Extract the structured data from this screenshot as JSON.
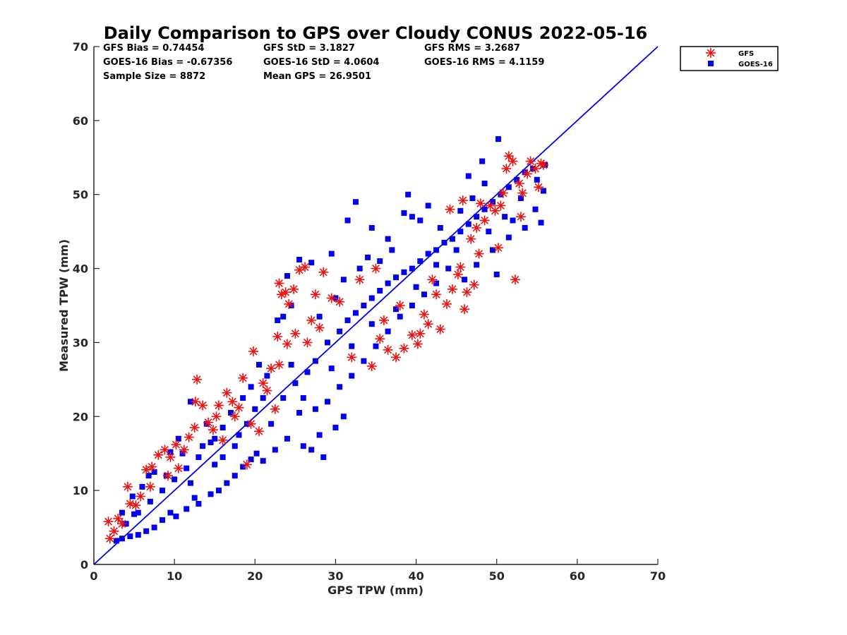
{
  "chart_data": {
    "type": "scatter",
    "title": "Daily Comparison to GPS over Cloudy CONUS 2022-05-16",
    "xlabel": "GPS TPW (mm)",
    "ylabel": "Measured TPW (mm)",
    "xlim": [
      0,
      70
    ],
    "ylim": [
      0,
      70
    ],
    "xticks": [
      "0",
      "10",
      "20",
      "30",
      "40",
      "50",
      "60",
      "70"
    ],
    "yticks": [
      "0",
      "10",
      "20",
      "30",
      "40",
      "50",
      "60",
      "70"
    ],
    "grid": false,
    "legend_position": "outside-top-right",
    "stats": {
      "gfs_bias": "GFS Bias = 0.74454",
      "gfs_std": "GFS StD = 3.1827",
      "gfs_rms": "GFS RMS = 3.2687",
      "goes_bias": "GOES-16 Bias = -0.67356",
      "goes_std": "GOES-16 StD = 4.0604",
      "goes_rms": "GOES-16 RMS = 4.1159",
      "sample_size": "Sample Size = 8872",
      "mean_gps": "Mean GPS = 26.9501"
    },
    "reference_line": {
      "type": "one-to-one",
      "x": [
        0,
        70
      ],
      "y": [
        0,
        70
      ],
      "color": "#0000ee"
    },
    "series": [
      {
        "name": "GFS",
        "marker": "asterisk",
        "color": "#ee1111",
        "points": [
          [
            1.8,
            5.8
          ],
          [
            2.5,
            4.5
          ],
          [
            3.0,
            6.2
          ],
          [
            4.2,
            10.5
          ],
          [
            4.5,
            8.2
          ],
          [
            5.2,
            8.0
          ],
          [
            6.5,
            12.8
          ],
          [
            7.2,
            13.2
          ],
          [
            8.0,
            14.8
          ],
          [
            8.8,
            15.5
          ],
          [
            9.5,
            14.5
          ],
          [
            10.2,
            16.2
          ],
          [
            11.2,
            15.5
          ],
          [
            11.8,
            17.2
          ],
          [
            12.5,
            18.5
          ],
          [
            12.8,
            25.0
          ],
          [
            12.6,
            22.0
          ],
          [
            13.5,
            21.5
          ],
          [
            14.2,
            19.2
          ],
          [
            15.5,
            21.5
          ],
          [
            16.5,
            23.2
          ],
          [
            17.2,
            22.0
          ],
          [
            18.0,
            21.2
          ],
          [
            18.5,
            25.2
          ],
          [
            19.0,
            13.5
          ],
          [
            19.5,
            19.0
          ],
          [
            19.8,
            28.8
          ],
          [
            21.0,
            24.5
          ],
          [
            22.0,
            26.5
          ],
          [
            22.5,
            21.0
          ],
          [
            23.0,
            38.0
          ],
          [
            23.3,
            36.5
          ],
          [
            23.8,
            36.8
          ],
          [
            24.2,
            35.2
          ],
          [
            24.8,
            37.2
          ],
          [
            25.0,
            31.2
          ],
          [
            25.5,
            39.8
          ],
          [
            26.2,
            40.2
          ],
          [
            27.0,
            33.0
          ],
          [
            27.5,
            36.5
          ],
          [
            28.5,
            39.5
          ],
          [
            22.8,
            30.8
          ],
          [
            23.0,
            27.0
          ],
          [
            24.0,
            29.8
          ],
          [
            36.5,
            29.0
          ],
          [
            37.5,
            28.0
          ],
          [
            38.5,
            29.2
          ],
          [
            39.5,
            31.0
          ],
          [
            40.2,
            29.8
          ],
          [
            40.5,
            31.2
          ],
          [
            41.0,
            33.8
          ],
          [
            41.5,
            32.5
          ],
          [
            42.5,
            36.5
          ],
          [
            43.0,
            31.8
          ],
          [
            43.8,
            35.2
          ],
          [
            44.5,
            37.2
          ],
          [
            45.2,
            39.2
          ],
          [
            45.5,
            40.2
          ],
          [
            46.0,
            34.5
          ],
          [
            46.3,
            36.8
          ],
          [
            47.2,
            37.8
          ],
          [
            47.8,
            42.0
          ],
          [
            48.5,
            46.5
          ],
          [
            49.2,
            48.5
          ],
          [
            49.8,
            47.8
          ],
          [
            50.2,
            42.8
          ],
          [
            50.8,
            50.2
          ],
          [
            51.2,
            53.5
          ],
          [
            51.5,
            55.2
          ],
          [
            52.0,
            54.5
          ],
          [
            52.3,
            38.5
          ],
          [
            52.8,
            51.5
          ],
          [
            53.2,
            50.2
          ],
          [
            53.8,
            52.8
          ],
          [
            54.2,
            54.5
          ],
          [
            54.8,
            53.5
          ],
          [
            55.2,
            51.0
          ],
          [
            55.5,
            54.2
          ],
          [
            55.8,
            54.0
          ],
          [
            44.2,
            48.0
          ],
          [
            45.8,
            49.2
          ],
          [
            47.5,
            45.5
          ],
          [
            48.0,
            48.8
          ],
          [
            32.0,
            28.0
          ],
          [
            34.5,
            26.8
          ],
          [
            35.5,
            30.5
          ],
          [
            36.0,
            33.0
          ],
          [
            38.0,
            35.0
          ],
          [
            30.5,
            35.5
          ],
          [
            26.5,
            30.0
          ],
          [
            28.0,
            32.0
          ],
          [
            29.5,
            36.0
          ],
          [
            20.5,
            18.0
          ],
          [
            21.5,
            23.5
          ],
          [
            16.0,
            16.8
          ],
          [
            17.5,
            20.0
          ],
          [
            10.5,
            13.0
          ],
          [
            9.2,
            12.0
          ],
          [
            7.0,
            10.5
          ],
          [
            5.8,
            9.2
          ],
          [
            3.5,
            5.5
          ],
          [
            2.0,
            3.5
          ],
          [
            14.8,
            18.2
          ],
          [
            15.2,
            20.0
          ],
          [
            33.0,
            38.5
          ],
          [
            35.0,
            40.0
          ],
          [
            42.0,
            38.5
          ],
          [
            46.8,
            44.0
          ],
          [
            50.5,
            48.5
          ],
          [
            53.0,
            47.0
          ]
        ]
      },
      {
        "name": "GOES-16",
        "marker": "square",
        "color": "#0000ee",
        "points": [
          [
            50.2,
            57.5
          ],
          [
            50.0,
            39.2
          ],
          [
            52.0,
            46.5
          ],
          [
            53.5,
            45.5
          ],
          [
            55.5,
            46.2
          ],
          [
            55.8,
            50.5
          ],
          [
            56.0,
            54.0
          ],
          [
            49.5,
            42.5
          ],
          [
            51.5,
            44.2
          ],
          [
            54.8,
            48.0
          ],
          [
            48.2,
            54.5
          ],
          [
            46.5,
            52.5
          ],
          [
            40.5,
            46.5
          ],
          [
            38.5,
            47.5
          ],
          [
            39.5,
            47.0
          ],
          [
            41.5,
            48.5
          ],
          [
            39.0,
            50.0
          ],
          [
            32.5,
            49.0
          ],
          [
            31.5,
            46.5
          ],
          [
            34.5,
            45.5
          ],
          [
            36.5,
            44.0
          ],
          [
            29.5,
            42.0
          ],
          [
            27.0,
            40.8
          ],
          [
            25.5,
            41.2
          ],
          [
            24.0,
            39.0
          ],
          [
            23.5,
            33.5
          ],
          [
            22.8,
            33.0
          ],
          [
            24.5,
            35.0
          ],
          [
            31.0,
            20.0
          ],
          [
            30.0,
            18.5
          ],
          [
            28.0,
            17.5
          ],
          [
            27.0,
            15.5
          ],
          [
            26.0,
            16.0
          ],
          [
            28.5,
            14.5
          ],
          [
            25.5,
            20.5
          ],
          [
            24.0,
            17.0
          ],
          [
            22.5,
            15.5
          ],
          [
            21.0,
            14.0
          ],
          [
            20.2,
            15.0
          ],
          [
            19.5,
            14.2
          ],
          [
            18.5,
            13.2
          ],
          [
            17.5,
            12.0
          ],
          [
            16.5,
            11.0
          ],
          [
            15.5,
            10.0
          ],
          [
            14.5,
            9.5
          ],
          [
            13.0,
            8.2
          ],
          [
            12.5,
            9.0
          ],
          [
            11.5,
            7.5
          ],
          [
            10.2,
            6.5
          ],
          [
            9.5,
            7.0
          ],
          [
            8.5,
            6.0
          ],
          [
            7.5,
            5.0
          ],
          [
            6.5,
            4.5
          ],
          [
            5.5,
            4.0
          ],
          [
            4.5,
            3.8
          ],
          [
            3.5,
            3.5
          ],
          [
            2.8,
            3.2
          ],
          [
            3.5,
            7.0
          ],
          [
            3.8,
            5.5
          ],
          [
            5.0,
            6.8
          ],
          [
            4.8,
            9.2
          ],
          [
            6.0,
            10.5
          ],
          [
            6.8,
            12.0
          ],
          [
            7.5,
            12.5
          ],
          [
            9.5,
            15.2
          ],
          [
            10.5,
            17.0
          ],
          [
            11.0,
            15.0
          ],
          [
            13.5,
            16.0
          ],
          [
            14.0,
            19.0
          ],
          [
            12.0,
            22.0
          ],
          [
            15.0,
            13.5
          ],
          [
            16.0,
            14.5
          ],
          [
            18.0,
            17.5
          ],
          [
            20.0,
            21.0
          ],
          [
            22.0,
            19.0
          ],
          [
            23.5,
            22.5
          ],
          [
            25.0,
            24.5
          ],
          [
            26.5,
            26.0
          ],
          [
            27.5,
            27.5
          ],
          [
            29.0,
            30.0
          ],
          [
            30.5,
            31.5
          ],
          [
            31.5,
            33.0
          ],
          [
            32.5,
            34.0
          ],
          [
            33.5,
            35.0
          ],
          [
            34.5,
            36.0
          ],
          [
            35.5,
            37.0
          ],
          [
            36.5,
            38.0
          ],
          [
            37.5,
            38.8
          ],
          [
            38.5,
            39.5
          ],
          [
            39.5,
            40.0
          ],
          [
            40.5,
            41.0
          ],
          [
            41.5,
            42.0
          ],
          [
            42.5,
            42.5
          ],
          [
            43.5,
            43.5
          ],
          [
            44.5,
            44.0
          ],
          [
            45.5,
            45.0
          ],
          [
            46.5,
            46.0
          ],
          [
            47.5,
            47.0
          ],
          [
            48.5,
            48.0
          ],
          [
            49.5,
            49.0
          ],
          [
            50.5,
            50.0
          ],
          [
            51.5,
            51.0
          ],
          [
            52.5,
            52.0
          ],
          [
            53.5,
            53.0
          ],
          [
            54.5,
            53.5
          ],
          [
            48.5,
            51.5
          ],
          [
            47.0,
            49.5
          ],
          [
            45.5,
            47.8
          ],
          [
            44.0,
            40.0
          ],
          [
            42.5,
            38.0
          ],
          [
            41.0,
            36.5
          ],
          [
            39.5,
            35.0
          ],
          [
            38.0,
            33.5
          ],
          [
            36.5,
            31.5
          ],
          [
            35.0,
            29.5
          ],
          [
            33.5,
            27.5
          ],
          [
            32.0,
            25.5
          ],
          [
            30.5,
            24.0
          ],
          [
            29.0,
            22.0
          ],
          [
            27.5,
            21.0
          ],
          [
            26.0,
            22.5
          ],
          [
            21.5,
            25.5
          ],
          [
            20.5,
            27.0
          ],
          [
            19.5,
            24.0
          ],
          [
            18.5,
            22.5
          ],
          [
            17.0,
            20.5
          ],
          [
            16.0,
            18.5
          ],
          [
            14.5,
            16.5
          ],
          [
            13.0,
            14.5
          ],
          [
            11.5,
            13.0
          ],
          [
            10.0,
            11.5
          ],
          [
            8.5,
            10.0
          ],
          [
            7.0,
            8.5
          ],
          [
            5.5,
            7.0
          ],
          [
            4.0,
            5.5
          ],
          [
            9.0,
            12.0
          ],
          [
            12.0,
            11.0
          ],
          [
            15.0,
            17.0
          ],
          [
            17.5,
            16.0
          ],
          [
            19.0,
            19.0
          ],
          [
            21.0,
            22.5
          ],
          [
            24.5,
            27.0
          ],
          [
            28.0,
            33.5
          ],
          [
            30.0,
            36.0
          ],
          [
            31.0,
            38.5
          ],
          [
            33.0,
            40.0
          ],
          [
            34.0,
            41.5
          ],
          [
            35.5,
            41.0
          ],
          [
            37.0,
            42.5
          ],
          [
            29.5,
            26.5
          ],
          [
            32.0,
            29.5
          ],
          [
            34.5,
            32.5
          ],
          [
            37.5,
            34.5
          ],
          [
            40.0,
            37.5
          ],
          [
            42.5,
            40.5
          ],
          [
            45.0,
            42.5
          ],
          [
            49.0,
            45.0
          ],
          [
            51.0,
            47.0
          ],
          [
            53.0,
            49.5
          ],
          [
            55.0,
            52.0
          ],
          [
            46.0,
            38.5
          ],
          [
            47.5,
            40.5
          ],
          [
            43.0,
            45.5
          ]
        ]
      }
    ]
  }
}
